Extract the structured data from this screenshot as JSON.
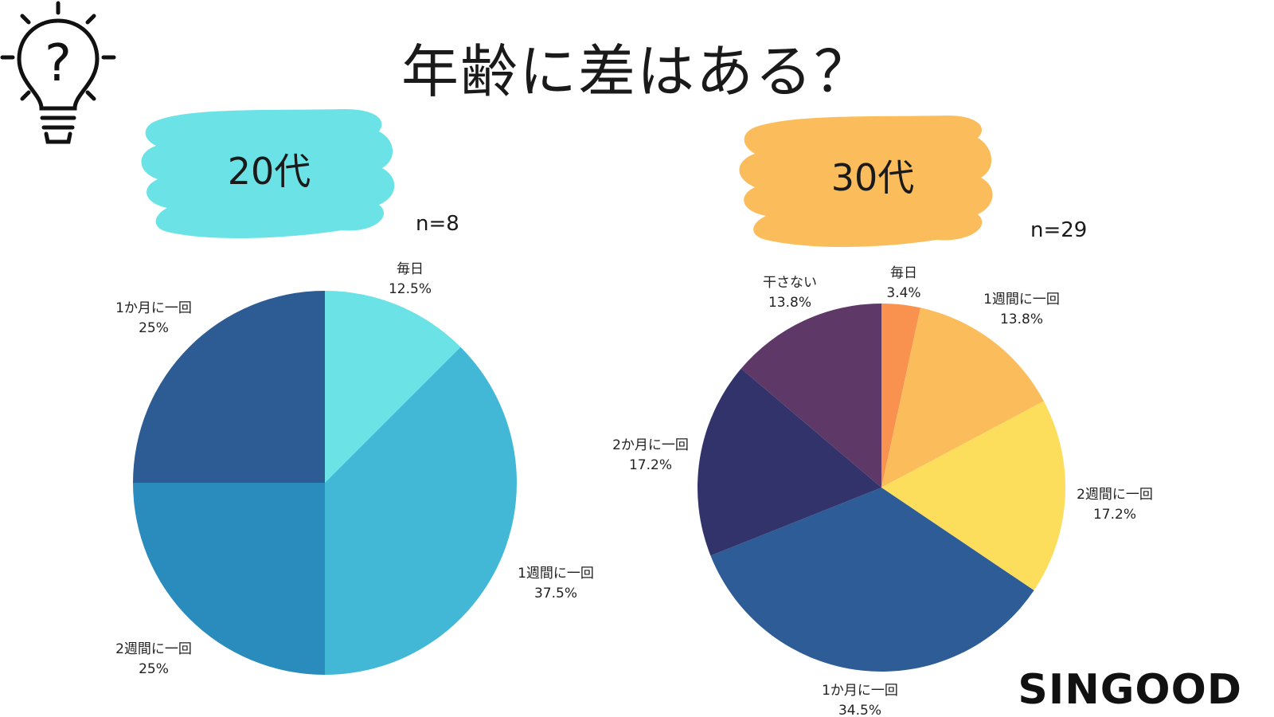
{
  "page": {
    "title": "年齢に差はある？",
    "brand": "SINGOOD",
    "icon": "lightbulb-question-icon"
  },
  "groups": [
    {
      "label": "20代",
      "n_label": "n=8",
      "blob_color": "#6be3e6"
    },
    {
      "label": "30代",
      "n_label": "n=29",
      "blob_color": "#fbbd5c"
    }
  ],
  "chart_data": [
    {
      "type": "pie",
      "title": "20代",
      "n": "n=8",
      "categories": [
        "毎日",
        "1週間に一回",
        "2週間に一回",
        "1か月に一回"
      ],
      "values": [
        12.5,
        37.5,
        25,
        25
      ],
      "labels": [
        "12.5%",
        "37.5%",
        "25%",
        "25%"
      ],
      "colors": [
        "#6be3e6",
        "#42b8d6",
        "#2a8bbd",
        "#2d5c94"
      ]
    },
    {
      "type": "pie",
      "title": "30代",
      "n": "n=29",
      "categories": [
        "毎日",
        "1週間に一回",
        "2週間に一回",
        "1か月に一回",
        "2か月に一回",
        "干さない"
      ],
      "values": [
        3.4,
        13.8,
        17.2,
        34.5,
        17.2,
        13.8
      ],
      "labels": [
        "3.4%",
        "13.8%",
        "17.2%",
        "34.5%",
        "17.2%",
        "13.8%"
      ],
      "colors": [
        "#f9924e",
        "#fbbd5c",
        "#fddd5c",
        "#2e5c96",
        "#33336b",
        "#5e3866"
      ]
    }
  ]
}
